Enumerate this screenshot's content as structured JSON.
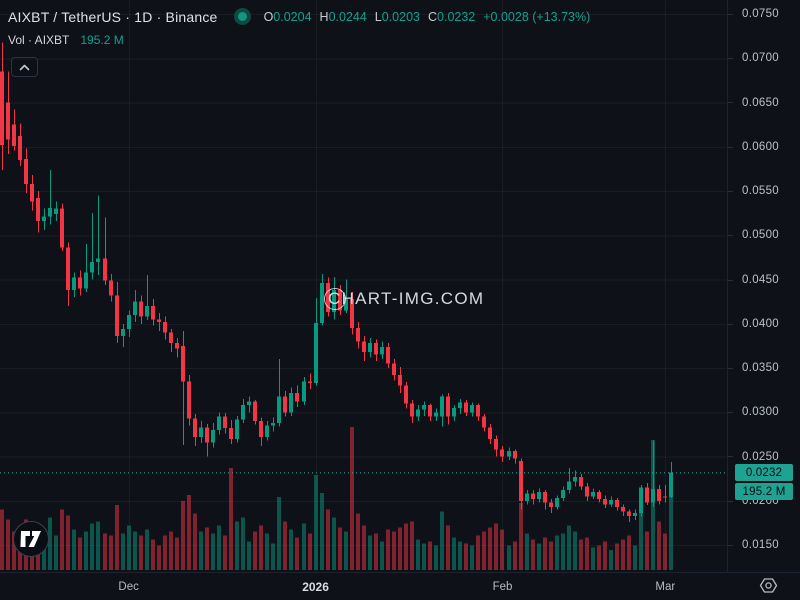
{
  "header": {
    "title": "AIXBT / TetherUS · 1D · Binance",
    "ohlc": {
      "o_label": "O",
      "o_value": "0.0204",
      "h_label": "H",
      "h_value": "0.0244",
      "l_label": "L",
      "l_value": "0.0203",
      "c_label": "C",
      "c_value": "0.0232",
      "change": "+0.0028 (+13.73%)"
    },
    "volume": {
      "label": "Vol · AIXBT",
      "value": "195.2 M"
    }
  },
  "watermark": {
    "text": "CHART-IMG.COM"
  },
  "price_axis": {
    "price_badge": "0.0232",
    "volume_badge": "195.2 M"
  },
  "colors": {
    "up": "#089981",
    "down": "#F23645",
    "volume_up": "rgba(8,153,129,0.5)",
    "volume_down": "rgba(242,54,69,0.5)",
    "accent": "#1FA292",
    "price_line": "#2CB7A5",
    "grid": "rgba(140,150,170,0.09)"
  },
  "chart_data": {
    "type": "candlestick",
    "symbol": "AIXBT/USDT",
    "exchange": "Binance",
    "interval": "1D",
    "legend_close": 0.0232,
    "legend_change_pct": 13.73,
    "current_price": 0.0232,
    "current_volume_millions": 195.2,
    "y_ticks": [
      0.075,
      0.07,
      0.065,
      0.06,
      0.055,
      0.05,
      0.045,
      0.04,
      0.035,
      0.03,
      0.025,
      0.02,
      0.015
    ],
    "x_ticks": [
      {
        "label": "Dec",
        "index": 21,
        "major": false
      },
      {
        "label": "2026",
        "index": 52,
        "major": true
      },
      {
        "label": "Feb",
        "index": 83,
        "major": false
      },
      {
        "label": "Mar",
        "index": 110,
        "major": false
      }
    ],
    "ohlcv_format": [
      "open",
      "high",
      "low",
      "close",
      "volume_millions"
    ],
    "candles": [
      [
        0.0685,
        0.0718,
        0.0574,
        0.0602,
        150
      ],
      [
        0.065,
        0.0685,
        0.0592,
        0.0608,
        125
      ],
      [
        0.0625,
        0.0642,
        0.0596,
        0.0601,
        95
      ],
      [
        0.0612,
        0.0626,
        0.0578,
        0.0585,
        110
      ],
      [
        0.0586,
        0.0598,
        0.0548,
        0.0558,
        125
      ],
      [
        0.0558,
        0.0568,
        0.0528,
        0.0538,
        105
      ],
      [
        0.0542,
        0.055,
        0.0503,
        0.0516,
        90
      ],
      [
        0.0516,
        0.053,
        0.0506,
        0.0521,
        70
      ],
      [
        0.0521,
        0.0574,
        0.0512,
        0.0531,
        130
      ],
      [
        0.0524,
        0.0538,
        0.0516,
        0.053,
        85
      ],
      [
        0.053,
        0.0536,
        0.0482,
        0.0486,
        150
      ],
      [
        0.0486,
        0.0492,
        0.042,
        0.0438,
        135
      ],
      [
        0.0438,
        0.0458,
        0.043,
        0.0452,
        100
      ],
      [
        0.0452,
        0.046,
        0.0432,
        0.044,
        80
      ],
      [
        0.044,
        0.049,
        0.0436,
        0.0458,
        95
      ],
      [
        0.0458,
        0.0525,
        0.045,
        0.047,
        115
      ],
      [
        0.047,
        0.0545,
        0.0455,
        0.0474,
        120
      ],
      [
        0.0474,
        0.052,
        0.0444,
        0.0449,
        90
      ],
      [
        0.0449,
        0.0456,
        0.0425,
        0.0432,
        85
      ],
      [
        0.0432,
        0.0447,
        0.0378,
        0.0386,
        160
      ],
      [
        0.0386,
        0.04,
        0.0374,
        0.0394,
        90
      ],
      [
        0.0394,
        0.0415,
        0.0385,
        0.041,
        110
      ],
      [
        0.041,
        0.0438,
        0.0402,
        0.0425,
        95
      ],
      [
        0.0425,
        0.0432,
        0.04,
        0.0408,
        85
      ],
      [
        0.0408,
        0.0455,
        0.0404,
        0.042,
        100
      ],
      [
        0.042,
        0.0428,
        0.0398,
        0.0405,
        75
      ],
      [
        0.0405,
        0.0412,
        0.0392,
        0.0402,
        60
      ],
      [
        0.0402,
        0.0408,
        0.0382,
        0.039,
        85
      ],
      [
        0.039,
        0.0394,
        0.0368,
        0.0378,
        95
      ],
      [
        0.0378,
        0.0384,
        0.0362,
        0.0372,
        80
      ],
      [
        0.0375,
        0.0392,
        0.0263,
        0.0335,
        170
      ],
      [
        0.0335,
        0.0342,
        0.0285,
        0.0293,
        185
      ],
      [
        0.0293,
        0.0298,
        0.0262,
        0.0272,
        140
      ],
      [
        0.0272,
        0.029,
        0.0265,
        0.0283,
        95
      ],
      [
        0.0283,
        0.0287,
        0.025,
        0.0266,
        105
      ],
      [
        0.0266,
        0.0288,
        0.026,
        0.028,
        90
      ],
      [
        0.028,
        0.03,
        0.0275,
        0.0295,
        110
      ],
      [
        0.0295,
        0.0299,
        0.0276,
        0.0282,
        85
      ],
      [
        0.0282,
        0.0291,
        0.0264,
        0.027,
        252
      ],
      [
        0.027,
        0.0296,
        0.0266,
        0.0292,
        120
      ],
      [
        0.0292,
        0.0315,
        0.0288,
        0.0308,
        130
      ],
      [
        0.0308,
        0.0318,
        0.03,
        0.0312,
        70
      ],
      [
        0.0312,
        0.0314,
        0.0286,
        0.029,
        95
      ],
      [
        0.029,
        0.0294,
        0.0262,
        0.0272,
        110
      ],
      [
        0.0272,
        0.029,
        0.0268,
        0.0285,
        90
      ],
      [
        0.0285,
        0.0294,
        0.0278,
        0.0288,
        65
      ],
      [
        0.0288,
        0.036,
        0.0284,
        0.0318,
        180
      ],
      [
        0.0318,
        0.0324,
        0.0295,
        0.03,
        120
      ],
      [
        0.03,
        0.0328,
        0.0296,
        0.0322,
        100
      ],
      [
        0.0322,
        0.033,
        0.0306,
        0.0312,
        80
      ],
      [
        0.0312,
        0.034,
        0.0308,
        0.0335,
        115
      ],
      [
        0.0335,
        0.0344,
        0.0326,
        0.0333,
        90
      ],
      [
        0.0333,
        0.0429,
        0.033,
        0.0401,
        235
      ],
      [
        0.0401,
        0.0456,
        0.0398,
        0.0446,
        190
      ],
      [
        0.0446,
        0.0452,
        0.0408,
        0.0413,
        150
      ],
      [
        0.0413,
        0.0453,
        0.0405,
        0.0438,
        130
      ],
      [
        0.0438,
        0.0444,
        0.041,
        0.0415,
        105
      ],
      [
        0.0415,
        0.045,
        0.0412,
        0.0428,
        95
      ],
      [
        0.0428,
        0.0436,
        0.0388,
        0.0395,
        353
      ],
      [
        0.0395,
        0.0402,
        0.0372,
        0.038,
        140
      ],
      [
        0.038,
        0.0386,
        0.0358,
        0.0368,
        110
      ],
      [
        0.0368,
        0.0384,
        0.0362,
        0.0378,
        85
      ],
      [
        0.0378,
        0.0382,
        0.0358,
        0.0365,
        90
      ],
      [
        0.0365,
        0.038,
        0.036,
        0.0374,
        70
      ],
      [
        0.0374,
        0.0378,
        0.035,
        0.0355,
        100
      ],
      [
        0.0355,
        0.036,
        0.0336,
        0.0342,
        95
      ],
      [
        0.0342,
        0.0351,
        0.0322,
        0.033,
        105
      ],
      [
        0.033,
        0.0334,
        0.0304,
        0.031,
        115
      ],
      [
        0.031,
        0.0314,
        0.0288,
        0.0295,
        120
      ],
      [
        0.0295,
        0.0308,
        0.029,
        0.0303,
        75
      ],
      [
        0.0303,
        0.0312,
        0.0296,
        0.0308,
        65
      ],
      [
        0.0308,
        0.031,
        0.029,
        0.0295,
        70
      ],
      [
        0.0295,
        0.0304,
        0.029,
        0.03,
        60
      ],
      [
        0.0295,
        0.032,
        0.0284,
        0.0318,
        145
      ],
      [
        0.0318,
        0.0322,
        0.0286,
        0.0295,
        110
      ],
      [
        0.0295,
        0.0308,
        0.029,
        0.0305,
        80
      ],
      [
        0.0305,
        0.0315,
        0.0298,
        0.0311,
        70
      ],
      [
        0.0311,
        0.0314,
        0.0296,
        0.03,
        65
      ],
      [
        0.03,
        0.0311,
        0.0295,
        0.0308,
        60
      ],
      [
        0.0308,
        0.031,
        0.029,
        0.0295,
        85
      ],
      [
        0.0295,
        0.0298,
        0.0278,
        0.0283,
        95
      ],
      [
        0.0283,
        0.0287,
        0.0264,
        0.027,
        105
      ],
      [
        0.027,
        0.0274,
        0.025,
        0.0258,
        115
      ],
      [
        0.0258,
        0.0262,
        0.0244,
        0.025,
        100
      ],
      [
        0.025,
        0.026,
        0.0246,
        0.0256,
        60
      ],
      [
        0.0256,
        0.0258,
        0.0242,
        0.0248,
        70
      ],
      [
        0.0245,
        0.0248,
        0.019,
        0.02,
        165
      ],
      [
        0.02,
        0.0212,
        0.0196,
        0.0208,
        90
      ],
      [
        0.0208,
        0.0212,
        0.0196,
        0.0202,
        75
      ],
      [
        0.0202,
        0.0214,
        0.0198,
        0.021,
        65
      ],
      [
        0.021,
        0.0212,
        0.019,
        0.0198,
        80
      ],
      [
        0.0198,
        0.0202,
        0.0186,
        0.0193,
        70
      ],
      [
        0.0193,
        0.0206,
        0.019,
        0.0203,
        85
      ],
      [
        0.0203,
        0.0216,
        0.02,
        0.0212,
        90
      ],
      [
        0.0212,
        0.0237,
        0.0208,
        0.0222,
        110
      ],
      [
        0.0222,
        0.0234,
        0.0216,
        0.0227,
        95
      ],
      [
        0.0227,
        0.023,
        0.0212,
        0.0216,
        75
      ],
      [
        0.0216,
        0.022,
        0.02,
        0.0205,
        80
      ],
      [
        0.0205,
        0.0214,
        0.0202,
        0.021,
        55
      ],
      [
        0.021,
        0.0212,
        0.0198,
        0.0202,
        60
      ],
      [
        0.0202,
        0.0206,
        0.0192,
        0.0196,
        70
      ],
      [
        0.0196,
        0.0205,
        0.0193,
        0.0201,
        50
      ],
      [
        0.0201,
        0.0203,
        0.0189,
        0.0193,
        65
      ],
      [
        0.0193,
        0.0196,
        0.0183,
        0.0188,
        75
      ],
      [
        0.0188,
        0.019,
        0.0176,
        0.0183,
        85
      ],
      [
        0.0183,
        0.019,
        0.0178,
        0.0186,
        60
      ],
      [
        0.0186,
        0.0218,
        0.0182,
        0.0215,
        150
      ],
      [
        0.0215,
        0.022,
        0.0195,
        0.0198,
        95
      ],
      [
        0.0198,
        0.0268,
        0.0193,
        0.0213,
        321
      ],
      [
        0.0213,
        0.0218,
        0.0196,
        0.02,
        120
      ],
      [
        0.0205,
        0.0218,
        0.0198,
        0.0204,
        90
      ],
      [
        0.0204,
        0.0244,
        0.0203,
        0.0232,
        195.2
      ]
    ]
  }
}
